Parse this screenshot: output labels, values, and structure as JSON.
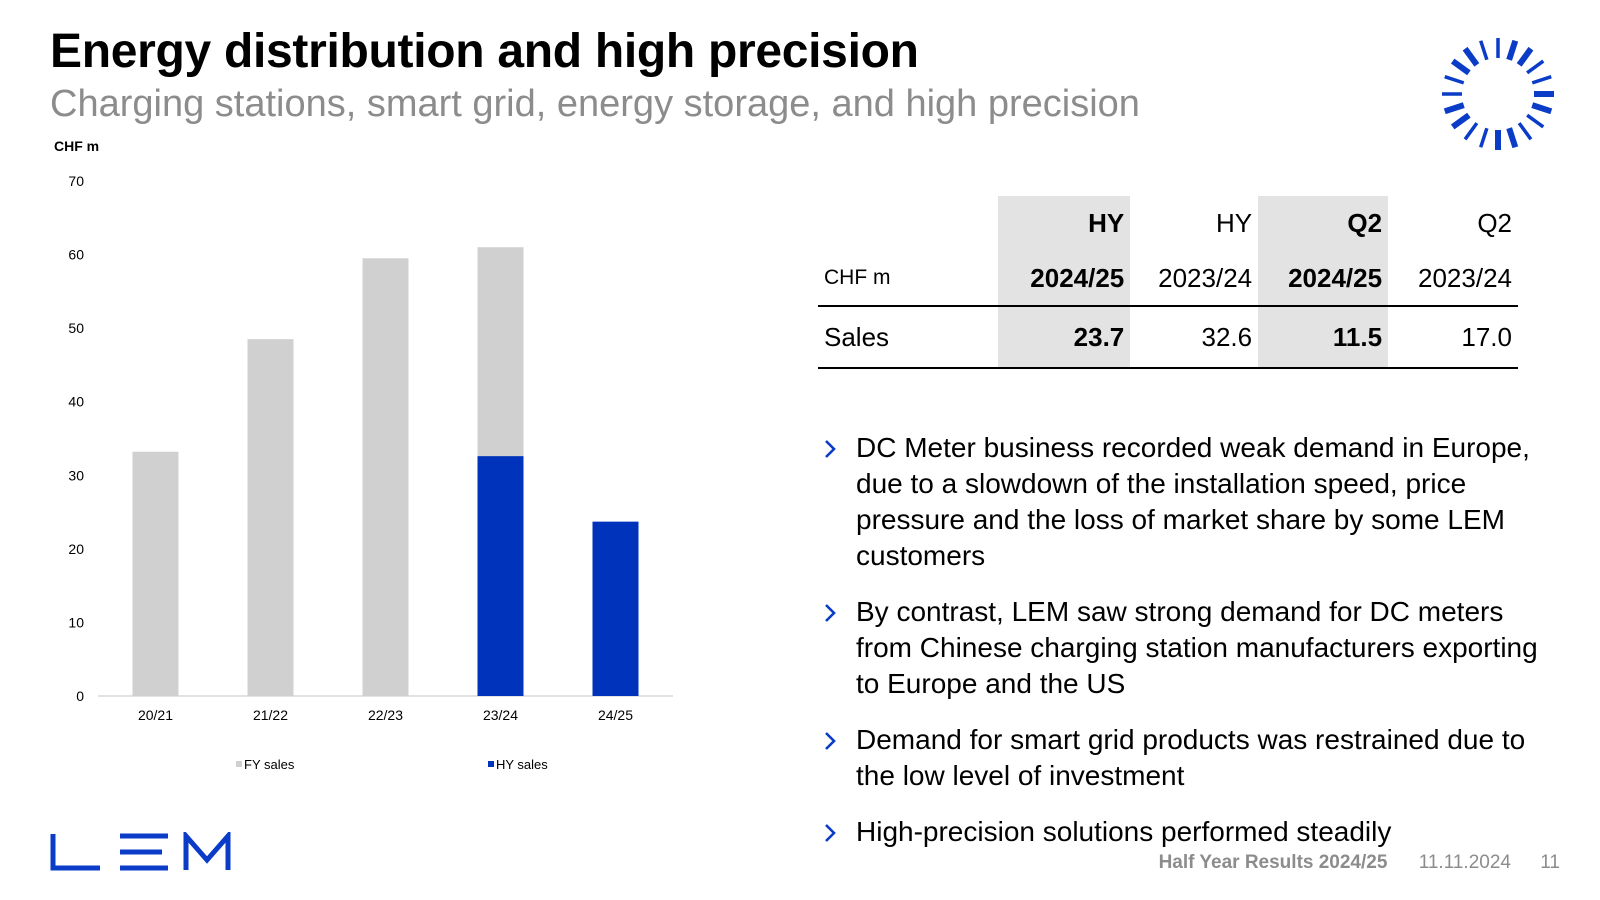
{
  "slide": {
    "title": "Energy distribution and high precision",
    "subtitle": "Charging stations, smart grid, energy storage, and high precision"
  },
  "colors": {
    "fy_bar": "#d0d0d0",
    "hy_bar": "#0033bb",
    "brand_blue": "#0a3cc8",
    "subtitle_grey": "#8c8c8c",
    "table_shade": "#e3e3e3"
  },
  "chart_data": {
    "type": "bar",
    "stacked": "overlay",
    "unit_label": "CHF m",
    "categories": [
      "20/21",
      "21/22",
      "22/23",
      "23/24",
      "24/25"
    ],
    "series": [
      {
        "name": "FY sales",
        "values": [
          33.2,
          48.5,
          59.5,
          61.0,
          null
        ]
      },
      {
        "name": "HY sales",
        "values": [
          null,
          null,
          null,
          32.6,
          23.7
        ]
      }
    ],
    "ylim": [
      0,
      70
    ],
    "yticks": [
      0,
      10,
      20,
      30,
      40,
      50,
      60,
      70
    ],
    "grid": false,
    "legend": "bottom"
  },
  "table": {
    "unit_label": "CHF m",
    "columns": [
      {
        "period": "HY",
        "year": "2024/25",
        "highlight": true
      },
      {
        "period": "HY",
        "year": "2023/24",
        "highlight": false
      },
      {
        "period": "Q2",
        "year": "2024/25",
        "highlight": true
      },
      {
        "period": "Q2",
        "year": "2023/24",
        "highlight": false
      }
    ],
    "rows": [
      {
        "label": "Sales",
        "values": [
          "23.7",
          "32.6",
          "11.5",
          "17.0"
        ]
      }
    ]
  },
  "bullets": [
    "DC Meter business recorded weak demand in Europe, due to a slowdown of the installation speed, price pressure and the loss of market share by some LEM customers",
    "By contrast, LEM saw strong demand for DC meters from Chinese charging station manufacturers exporting to Europe and the US",
    "Demand for smart grid products was restrained due to the low level of investment",
    "High-precision solutions performed steadily"
  ],
  "logo": {
    "text": "LEM"
  },
  "footer": {
    "title": "Half Year Results 2024/25",
    "date": "11.11.2024",
    "page": "11"
  }
}
